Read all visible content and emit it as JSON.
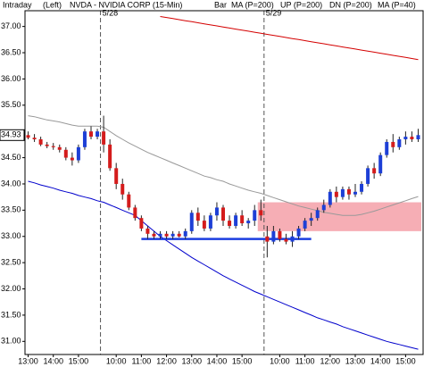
{
  "chart_data": {
    "type": "candlestick",
    "header": {
      "label": "Intraday",
      "side": "(Left)",
      "title": "NVDA - NVIDIA CORP (15-Min)",
      "bar_label": "Bar"
    },
    "categories": [
      "13:00",
      null,
      null,
      null,
      "14:00",
      null,
      null,
      null,
      "15:00",
      null,
      null,
      null,
      null,
      null,
      "10:00",
      null,
      null,
      null,
      "11:00",
      null,
      null,
      null,
      "12:00",
      null,
      null,
      null,
      "13:00",
      null,
      null,
      null,
      "14:00",
      null,
      null,
      null,
      "15:00",
      null,
      null,
      null,
      null,
      null,
      "10:00",
      null,
      null,
      null,
      "11:00",
      null,
      null,
      null,
      "12:00",
      null,
      null,
      null,
      "13:00",
      null,
      null,
      null,
      "14:00",
      null,
      null,
      null,
      "15:00",
      null,
      null
    ],
    "ohlc": [
      [
        34.93,
        35.0,
        34.85,
        34.88
      ],
      [
        34.88,
        34.95,
        34.8,
        34.85
      ],
      [
        34.85,
        34.9,
        34.72,
        34.75
      ],
      [
        34.75,
        34.8,
        34.68,
        34.72
      ],
      [
        34.72,
        34.78,
        34.65,
        34.7
      ],
      [
        34.7,
        34.75,
        34.6,
        34.65
      ],
      [
        34.65,
        34.7,
        34.45,
        34.5
      ],
      [
        34.5,
        34.6,
        34.35,
        34.45
      ],
      [
        34.45,
        34.75,
        34.4,
        34.7
      ],
      [
        34.7,
        35.05,
        34.65,
        35.0
      ],
      [
        35.0,
        35.1,
        34.85,
        34.9
      ],
      [
        34.9,
        35.05,
        34.85,
        35.0
      ],
      [
        35.0,
        35.3,
        34.6,
        34.75
      ],
      [
        34.75,
        34.85,
        34.25,
        34.3
      ],
      [
        34.3,
        34.4,
        33.9,
        34.0
      ],
      [
        34.0,
        34.1,
        33.7,
        33.8
      ],
      [
        33.8,
        33.85,
        33.5,
        33.55
      ],
      [
        33.55,
        33.6,
        33.3,
        33.35
      ],
      [
        33.35,
        33.4,
        33.1,
        33.15
      ],
      [
        33.15,
        33.2,
        32.95,
        33.05
      ],
      [
        33.05,
        33.1,
        32.95,
        33.0
      ],
      [
        33.0,
        33.1,
        32.95,
        33.05
      ],
      [
        33.05,
        33.1,
        32.95,
        33.0
      ],
      [
        33.0,
        33.1,
        32.95,
        33.05
      ],
      [
        33.05,
        33.1,
        32.98,
        33.0
      ],
      [
        33.0,
        33.15,
        32.95,
        33.1
      ],
      [
        33.1,
        33.5,
        33.05,
        33.45
      ],
      [
        33.45,
        33.55,
        33.2,
        33.3
      ],
      [
        33.3,
        33.4,
        33.1,
        33.15
      ],
      [
        33.15,
        33.45,
        33.1,
        33.4
      ],
      [
        33.4,
        33.65,
        33.3,
        33.55
      ],
      [
        33.55,
        33.6,
        33.2,
        33.3
      ],
      [
        33.3,
        33.4,
        33.15,
        33.2
      ],
      [
        33.2,
        33.45,
        33.15,
        33.4
      ],
      [
        33.4,
        33.5,
        33.2,
        33.25
      ],
      [
        33.25,
        33.35,
        33.15,
        33.3
      ],
      [
        33.3,
        33.6,
        33.2,
        33.5
      ],
      [
        33.5,
        33.7,
        33.3,
        33.4
      ],
      [
        33.0,
        33.2,
        32.6,
        32.9
      ],
      [
        32.9,
        33.2,
        32.85,
        33.1
      ],
      [
        33.1,
        33.15,
        32.9,
        32.95
      ],
      [
        32.95,
        33.05,
        32.85,
        32.9
      ],
      [
        32.9,
        33.1,
        32.8,
        33.0
      ],
      [
        33.0,
        33.2,
        32.95,
        33.15
      ],
      [
        33.15,
        33.35,
        33.1,
        33.3
      ],
      [
        33.3,
        33.45,
        33.2,
        33.35
      ],
      [
        33.35,
        33.55,
        33.3,
        33.5
      ],
      [
        33.5,
        33.7,
        33.45,
        33.6
      ],
      [
        33.6,
        33.9,
        33.55,
        33.85
      ],
      [
        33.85,
        33.95,
        33.65,
        33.75
      ],
      [
        33.75,
        33.95,
        33.7,
        33.9
      ],
      [
        33.9,
        33.95,
        33.7,
        33.8
      ],
      [
        33.8,
        34.0,
        33.75,
        33.85
      ],
      [
        33.85,
        34.05,
        33.8,
        34.0
      ],
      [
        34.0,
        34.35,
        33.95,
        34.3
      ],
      [
        34.3,
        34.4,
        34.1,
        34.2
      ],
      [
        34.2,
        34.6,
        34.15,
        34.55
      ],
      [
        34.55,
        34.85,
        34.5,
        34.8
      ],
      [
        34.8,
        34.95,
        34.6,
        34.7
      ],
      [
        34.7,
        34.9,
        34.65,
        34.85
      ],
      [
        34.85,
        35.0,
        34.75,
        34.9
      ],
      [
        34.9,
        35.0,
        34.8,
        34.85
      ],
      [
        34.85,
        35.05,
        34.8,
        34.93
      ]
    ],
    "up_color": "#1d3fd6",
    "down_color": "#d41c1c",
    "series": [
      {
        "name": "MA (P=200)",
        "color": "#d40000",
        "values": [
          null,
          null,
          null,
          null,
          null,
          null,
          null,
          null,
          null,
          null,
          null,
          null,
          null,
          null,
          null,
          null,
          null,
          null,
          null,
          null,
          null,
          37.19,
          37.17,
          37.15,
          37.13,
          37.11,
          37.09,
          37.07,
          37.05,
          37.03,
          37.01,
          36.99,
          36.97,
          36.95,
          36.93,
          36.91,
          36.89,
          36.87,
          36.85,
          36.83,
          36.81,
          36.79,
          36.77,
          36.75,
          36.73,
          36.71,
          36.69,
          36.67,
          36.65,
          36.63,
          36.61,
          36.59,
          36.57,
          36.55,
          36.53,
          36.51,
          36.49,
          36.47,
          36.45,
          36.43,
          36.41,
          36.39,
          36.37
        ]
      },
      {
        "name": "UP (P=200)",
        "color": "#00a000",
        "values": [
          null,
          null,
          null,
          null,
          null,
          null,
          null,
          null,
          null,
          null,
          null,
          null,
          null,
          null,
          null,
          null,
          null,
          null,
          null,
          null,
          null,
          null,
          null,
          null,
          null,
          null,
          null,
          null,
          null,
          null,
          null,
          null,
          null,
          null,
          null,
          null,
          null,
          null,
          null,
          null,
          null,
          null,
          null,
          null,
          null,
          null,
          null,
          null,
          null,
          null,
          null,
          null,
          null,
          null,
          null,
          null,
          null,
          null,
          null,
          null,
          null,
          null,
          null
        ]
      },
      {
        "name": "DN (P=200)",
        "color": "#0000cc",
        "values": [
          34.05,
          34.02,
          33.98,
          33.95,
          33.92,
          33.88,
          33.85,
          33.82,
          33.78,
          33.75,
          33.72,
          33.68,
          33.65,
          33.6,
          33.55,
          33.5,
          33.45,
          33.4,
          33.3,
          33.2,
          33.1,
          33.0,
          32.92,
          32.84,
          32.76,
          32.68,
          32.6,
          32.53,
          32.46,
          32.39,
          32.32,
          32.25,
          32.19,
          32.13,
          32.07,
          32.01,
          31.95,
          31.9,
          31.85,
          31.8,
          31.75,
          31.7,
          31.65,
          31.6,
          31.55,
          31.5,
          31.45,
          31.41,
          31.37,
          31.33,
          31.28,
          31.24,
          31.2,
          31.16,
          31.12,
          31.08,
          31.04,
          31.0,
          30.97,
          30.94,
          30.91,
          30.88,
          30.85
        ]
      },
      {
        "name": "MA (P=40)",
        "color": "#999999",
        "values": [
          35.3,
          35.28,
          35.25,
          35.22,
          35.2,
          35.18,
          35.15,
          35.12,
          35.1,
          35.1,
          35.1,
          35.1,
          35.08,
          35.0,
          34.92,
          34.85,
          34.78,
          34.72,
          34.66,
          34.6,
          34.55,
          34.5,
          34.45,
          34.4,
          34.35,
          34.3,
          34.25,
          34.2,
          34.15,
          34.12,
          34.08,
          34.05,
          34.0,
          33.96,
          33.92,
          33.88,
          33.85,
          33.82,
          33.78,
          33.74,
          33.7,
          33.66,
          33.62,
          33.58,
          33.55,
          33.52,
          33.49,
          33.46,
          33.44,
          33.42,
          33.4,
          33.4,
          33.4,
          33.42,
          33.45,
          33.48,
          33.52,
          33.56,
          33.6,
          33.64,
          33.68,
          33.72,
          33.76
        ]
      }
    ],
    "sessions": [
      {
        "label": "5/28",
        "start": 12
      },
      {
        "label": "5/29",
        "start": 38
      }
    ],
    "zone": {
      "from": 37,
      "to": 62,
      "y": [
        33.1,
        33.65
      ],
      "color": "#f4a0a8"
    },
    "support": {
      "from": 18,
      "to": 45,
      "value": 32.95,
      "color": "#1c3ee0"
    },
    "last_price": {
      "value": 34.93,
      "label": "34.93"
    },
    "ylim": [
      30.75,
      37.3
    ],
    "yticks": [
      {
        "value": 31,
        "label": "31.00"
      },
      {
        "value": 31.5,
        "label": "31.50"
      },
      {
        "value": 32,
        "label": "32.00"
      },
      {
        "value": 32.5,
        "label": "32.50"
      },
      {
        "value": 33,
        "label": "33.00"
      },
      {
        "value": 33.5,
        "label": "33.50"
      },
      {
        "value": 34,
        "label": "34.00"
      },
      {
        "value": 34.5,
        "label": "34.50"
      },
      {
        "value": 35.5,
        "label": "35.50"
      },
      {
        "value": 36,
        "label": "36.00"
      },
      {
        "value": 36.5,
        "label": "36.50"
      },
      {
        "value": 37,
        "label": "37.00"
      }
    ]
  }
}
